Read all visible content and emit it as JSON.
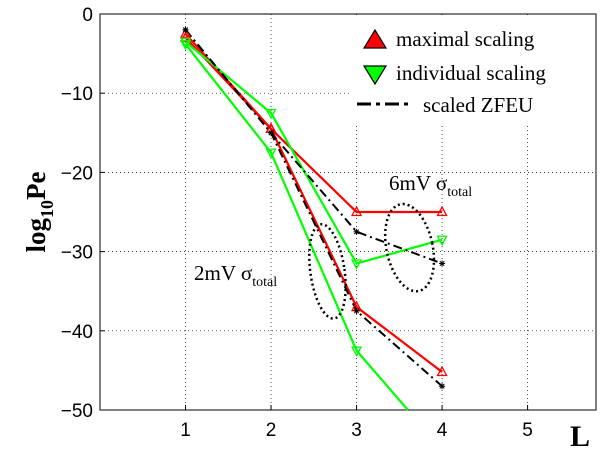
{
  "chart_data": {
    "type": "line",
    "xlabel": "L",
    "ylabel": "log10Pe",
    "ylabel_parts": {
      "base": "log",
      "sub": "10",
      "rest": "Pe"
    },
    "xlim": [
      0,
      5.8
    ],
    "ylim": [
      -50,
      0
    ],
    "xticks": [
      1,
      2,
      3,
      4,
      5
    ],
    "yticks": [
      0,
      -10,
      -20,
      -30,
      -40,
      -50
    ],
    "xtick_labels": [
      "1",
      "2",
      "3",
      "4",
      "5"
    ],
    "ytick_labels": [
      "0",
      "−10",
      "−20",
      "−30",
      "−40",
      "−50"
    ],
    "grid": true,
    "legend_position": "top-right",
    "legend": [
      {
        "label": "maximal scaling",
        "marker": "triangle-up",
        "color": "#ff0000",
        "line": "solid"
      },
      {
        "label": "individual scaling",
        "marker": "triangle-down",
        "color": "#00ff00",
        "line": "solid"
      },
      {
        "label": "scaled ZFEU",
        "marker": "none",
        "color": "#000000",
        "line": "dashdot"
      }
    ],
    "series": [
      {
        "group": "maximal scaling",
        "color": "#ff0000",
        "style": "solid",
        "marker": "triangle-up",
        "x": [
          1,
          2,
          3,
          4
        ],
        "y": [
          -3,
          -14.5,
          -25,
          -25
        ]
      },
      {
        "group": "maximal scaling",
        "color": "#ff0000",
        "style": "solid",
        "marker": "triangle-up",
        "x": [
          1,
          2,
          3,
          4
        ],
        "y": [
          -2.5,
          -14.5,
          -37,
          -45.2
        ]
      },
      {
        "group": "individual scaling",
        "color": "#00ff00",
        "style": "solid",
        "marker": "triangle-down",
        "x": [
          1,
          2,
          3,
          4
        ],
        "y": [
          -3.5,
          -12.5,
          -31.5,
          -28.5
        ]
      },
      {
        "group": "individual scaling",
        "color": "#00ff00",
        "style": "solid",
        "marker": "triangle-down",
        "x": [
          1,
          2,
          3,
          3.6
        ],
        "y": [
          -3.8,
          -17.5,
          -42.5,
          -50
        ]
      },
      {
        "group": "scaled ZFEU",
        "color": "#000000",
        "style": "dashdot",
        "marker": "star",
        "x": [
          1,
          2,
          3,
          4
        ],
        "y": [
          -2,
          -15,
          -27.5,
          -31.5
        ]
      },
      {
        "group": "scaled ZFEU",
        "color": "#000000",
        "style": "dashdot",
        "marker": "star",
        "x": [
          1,
          2,
          3,
          4
        ],
        "y": [
          -2,
          -15,
          -37.5,
          -47
        ]
      }
    ],
    "annotations": [
      {
        "id": "ann-6mv",
        "base": "6mV ",
        "sigma": "σ",
        "sub": "total"
      },
      {
        "id": "ann-2mv",
        "base": "2mV ",
        "sigma": "σ",
        "sub": "total"
      }
    ],
    "ellipses": [
      {
        "id": "ellipse-6mv",
        "cx": 3.62,
        "cy": -29.5,
        "rx": 0.27,
        "ry": 5.6,
        "rotate": -12
      },
      {
        "id": "ellipse-2mv",
        "cx": 2.66,
        "cy": -32.5,
        "rx": 0.2,
        "ry": 6.0,
        "rotate": -8
      }
    ]
  }
}
